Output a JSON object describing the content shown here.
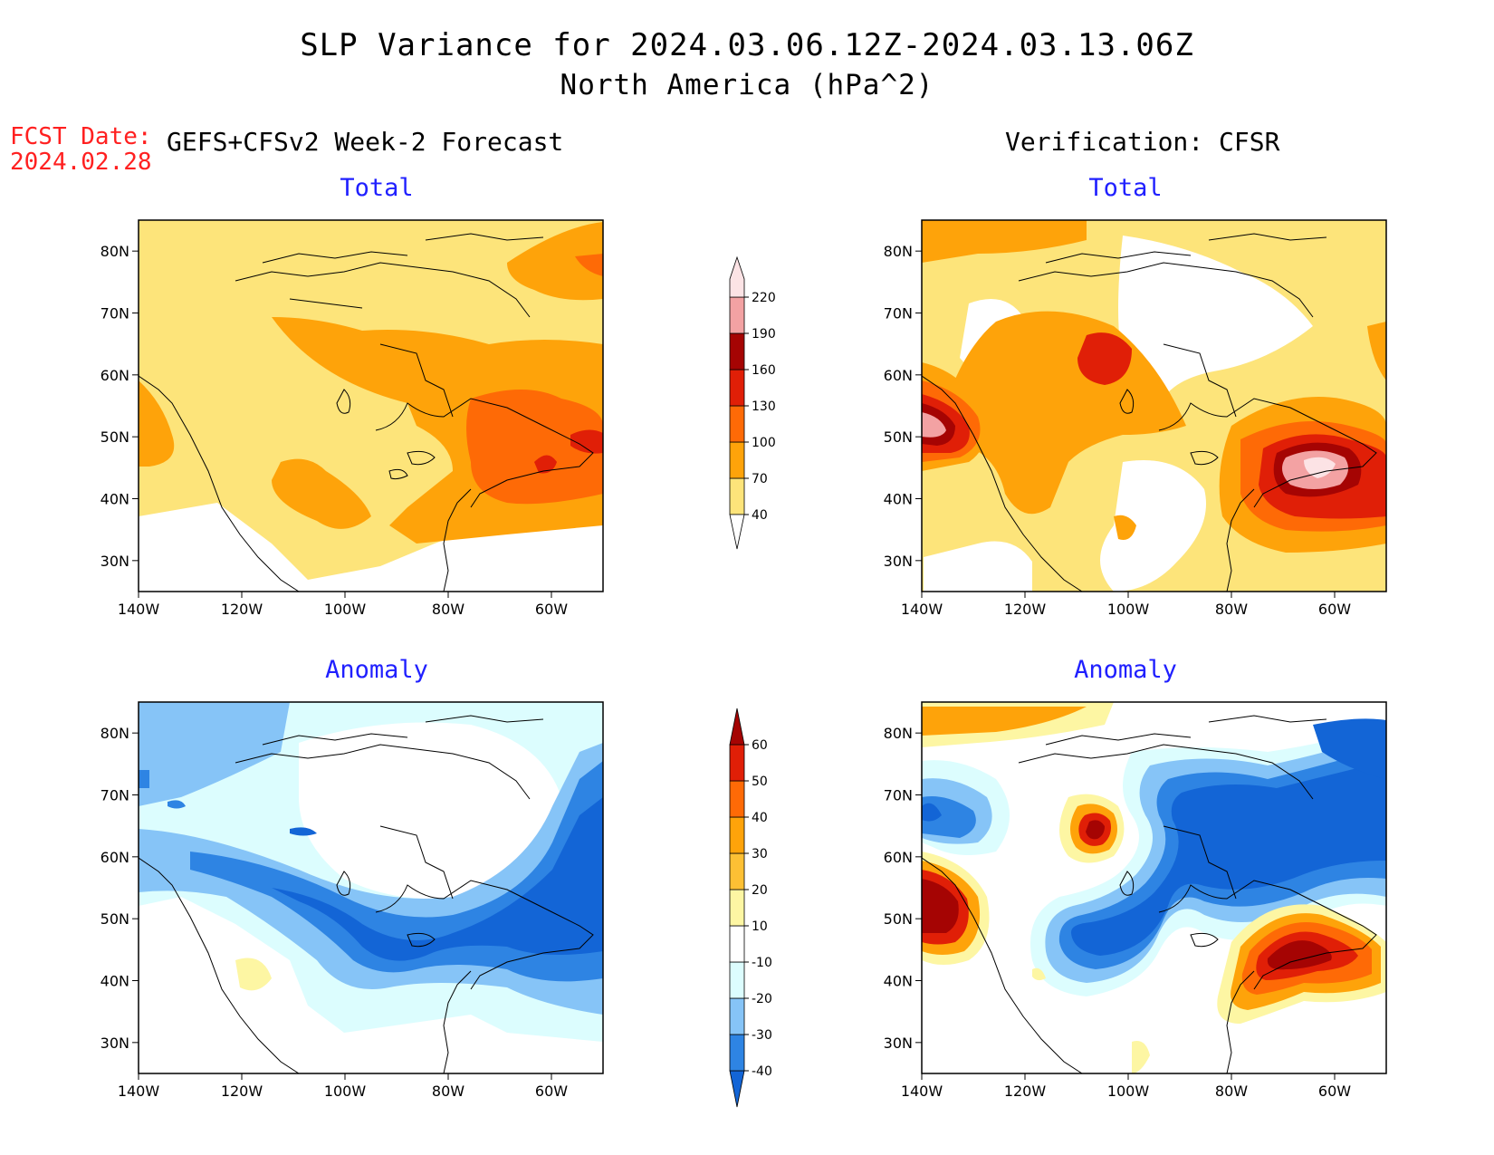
{
  "title_line1": "SLP Variance for 2024.03.06.12Z-2024.03.13.06Z",
  "title_line2": "North America (hPa^2)",
  "fcst_label": "FCST Date:",
  "fcst_date": "2024.02.28",
  "left_header": "GEFS+CFSv2 Week-2 Forecast",
  "right_header": "Verification: CFSR",
  "panels": {
    "forecast_total": {
      "title": "Total"
    },
    "verification_total": {
      "title": "Total"
    },
    "forecast_anomaly": {
      "title": "Anomaly"
    },
    "verification_anomaly": {
      "title": "Anomaly"
    }
  },
  "axes": {
    "lat_labels": [
      "80N",
      "70N",
      "60N",
      "50N",
      "40N",
      "30N"
    ],
    "lon_labels": [
      "140W",
      "120W",
      "100W",
      "80W",
      "60W"
    ],
    "lat_values": [
      80,
      70,
      60,
      50,
      40,
      30
    ],
    "lon_values": [
      -140,
      -120,
      -100,
      -80,
      -60
    ],
    "lat_range": [
      25,
      85
    ],
    "lon_range": [
      -140,
      -50
    ]
  },
  "total_colorbar": {
    "levels": [
      "40",
      "70",
      "100",
      "130",
      "160",
      "190",
      "220"
    ],
    "colors": [
      "#fde47a",
      "#fea30a",
      "#fe6a06",
      "#e01f07",
      "#a50403",
      "#f3a2a3",
      "#fce3e5"
    ]
  },
  "anomaly_colorbar": {
    "levels": [
      "-40",
      "-30",
      "-20",
      "-10",
      "10",
      "20",
      "30",
      "40",
      "50",
      "60"
    ],
    "colors": [
      "#1365d6",
      "#2e84e3",
      "#86c4f7",
      "#dcfdfe",
      "#ffffff",
      "#fdf6a3",
      "#fdc034",
      "#fea30a",
      "#fe6a06",
      "#e01f07",
      "#a50403"
    ]
  },
  "map_colors": {
    "ocean_default": "#ffffff",
    "coast": "#000000",
    "frame": "#000000"
  }
}
